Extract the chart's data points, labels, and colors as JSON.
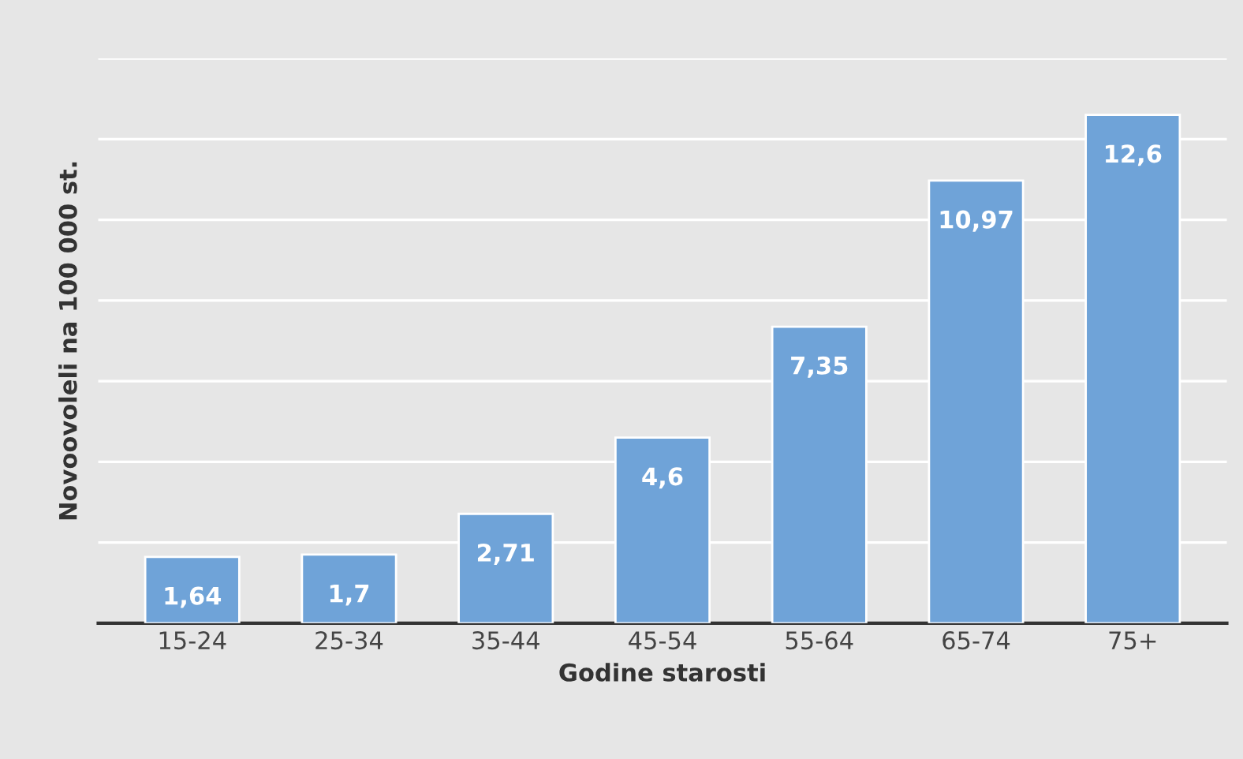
{
  "chart_data": {
    "type": "bar",
    "xlabel": "Godine starosti",
    "ylabel": "Novoovoleli na 100 000 st.",
    "categories": [
      "15-24",
      "25-34",
      "35-44",
      "45-54",
      "55-64",
      "65-74",
      "75+"
    ],
    "values": [
      1.64,
      1.7,
      2.71,
      4.6,
      7.35,
      10.97,
      12.6
    ],
    "value_labels": [
      "1,64",
      "1,7",
      "2,71",
      "4,6",
      "7,35",
      "10,97",
      "12,6"
    ],
    "color": "#6fa3d8",
    "ylim": [
      0,
      14
    ],
    "yticks": [
      {
        "value": 0,
        "label": null
      },
      {
        "value": 2,
        "label": null
      },
      {
        "value": 4,
        "label": null
      },
      {
        "value": 6,
        "label": null
      },
      {
        "value": 8,
        "label": null
      },
      {
        "value": 10,
        "label": null
      },
      {
        "value": 12,
        "label": null
      },
      {
        "value": 14,
        "label": null
      }
    ],
    "grid": "y",
    "legend": false
  }
}
